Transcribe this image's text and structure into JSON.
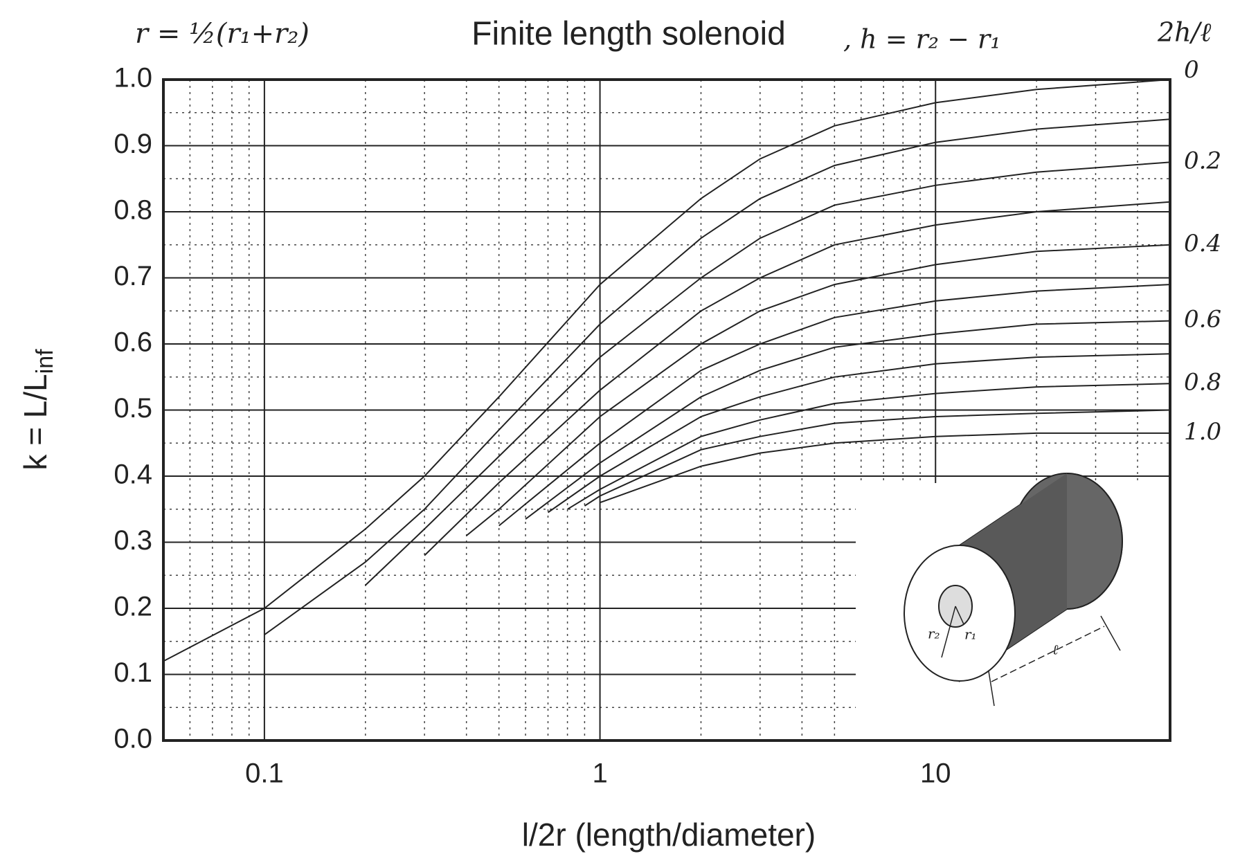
{
  "chart_data": {
    "type": "line",
    "title": "Finite length solenoid",
    "annotations": [
      "r = ½(r₁+r₂)",
      ", h = r₂ − r₁",
      "2h/ℓ"
    ],
    "xlabel": "l/2r (length/diameter)",
    "ylabel": {
      "main": "k = L/L",
      "sub": "inf"
    },
    "xscale": "log",
    "xlim": [
      0.05,
      50
    ],
    "ylim": [
      0,
      1
    ],
    "xticks": [
      0.1,
      1,
      10
    ],
    "minor_xticks": [
      0.05,
      0.06,
      0.07,
      0.08,
      0.09,
      0.2,
      0.3,
      0.4,
      0.5,
      0.6,
      0.7,
      0.8,
      0.9,
      2,
      3,
      4,
      5,
      6,
      7,
      8,
      9,
      20,
      30,
      40
    ],
    "yticks": [
      {
        "value": 0,
        "label": "0.0"
      },
      0.1,
      0.2,
      0.3,
      0.4,
      0.5,
      0.6,
      0.7,
      0.8,
      0.9,
      {
        "value": 1,
        "label": "1.0"
      }
    ],
    "minor_yticks": [
      0.05,
      0.15,
      0.25,
      0.35,
      0.45,
      0.55,
      0.65,
      0.75,
      0.85,
      0.95
    ],
    "grid": true,
    "color": "#222222",
    "inset_labels": [
      "r₂",
      "r₁",
      "ℓ"
    ],
    "series": [
      {
        "name": "0",
        "x": [
          0.05,
          0.1,
          0.2,
          0.3,
          0.5,
          1,
          2,
          3,
          5,
          10,
          20,
          50
        ],
        "values": [
          0.12,
          0.2,
          0.32,
          0.4,
          0.52,
          0.69,
          0.82,
          0.88,
          0.93,
          0.965,
          0.985,
          1.0
        ]
      },
      {
        "x": [
          0.1,
          0.2,
          0.3,
          0.5,
          1,
          2,
          3,
          5,
          10,
          20,
          50
        ],
        "values": [
          0.16,
          0.27,
          0.35,
          0.47,
          0.63,
          0.76,
          0.82,
          0.87,
          0.905,
          0.925,
          0.94
        ]
      },
      {
        "name": "0.2",
        "x": [
          0.2,
          0.3,
          0.5,
          1,
          2,
          3,
          5,
          10,
          20,
          50
        ],
        "values": [
          0.235,
          0.32,
          0.43,
          0.58,
          0.7,
          0.76,
          0.81,
          0.84,
          0.86,
          0.875
        ]
      },
      {
        "x": [
          0.3,
          0.5,
          1,
          2,
          3,
          5,
          10,
          20,
          50
        ],
        "values": [
          0.28,
          0.39,
          0.53,
          0.65,
          0.7,
          0.75,
          0.78,
          0.8,
          0.815
        ]
      },
      {
        "name": "0.4",
        "x": [
          0.4,
          0.5,
          1,
          2,
          3,
          5,
          10,
          20,
          50
        ],
        "values": [
          0.31,
          0.35,
          0.49,
          0.6,
          0.65,
          0.69,
          0.72,
          0.74,
          0.75
        ]
      },
      {
        "x": [
          0.5,
          1,
          2,
          3,
          5,
          10,
          20,
          50
        ],
        "values": [
          0.325,
          0.45,
          0.56,
          0.6,
          0.64,
          0.665,
          0.68,
          0.69
        ]
      },
      {
        "name": "0.6",
        "x": [
          0.6,
          1,
          2,
          3,
          5,
          10,
          20,
          50
        ],
        "values": [
          0.335,
          0.42,
          0.52,
          0.56,
          0.595,
          0.615,
          0.63,
          0.635
        ]
      },
      {
        "x": [
          0.7,
          1,
          2,
          3,
          5,
          10,
          20,
          50
        ],
        "values": [
          0.345,
          0.4,
          0.49,
          0.52,
          0.55,
          0.57,
          0.58,
          0.585
        ]
      },
      {
        "name": "0.8",
        "x": [
          0.8,
          1,
          2,
          3,
          5,
          10,
          20,
          50
        ],
        "values": [
          0.35,
          0.38,
          0.46,
          0.485,
          0.51,
          0.525,
          0.535,
          0.54
        ]
      },
      {
        "x": [
          0.9,
          1,
          2,
          3,
          5,
          10,
          20,
          50
        ],
        "values": [
          0.355,
          0.37,
          0.44,
          0.46,
          0.48,
          0.49,
          0.495,
          0.5
        ]
      },
      {
        "name": "1.0",
        "x": [
          1,
          2,
          3,
          5,
          10,
          20,
          50
        ],
        "values": [
          0.36,
          0.415,
          0.435,
          0.45,
          0.46,
          0.465,
          0.465
        ]
      }
    ]
  }
}
